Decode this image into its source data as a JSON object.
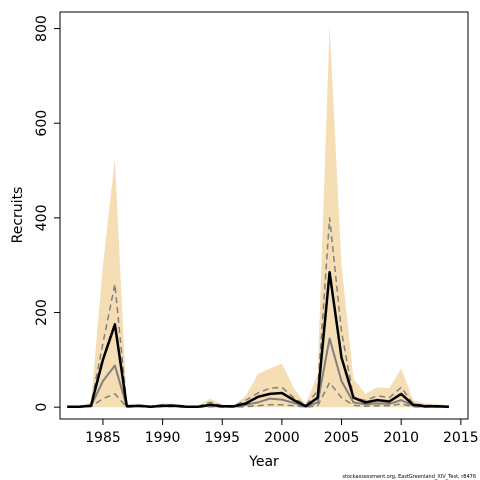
{
  "chart_data": {
    "type": "line",
    "xlabel": "Year",
    "ylabel": "Recruits",
    "xlim": [
      1981.4,
      2015.6
    ],
    "ylim": [
      -25,
      835
    ],
    "x_ticks": [
      1985,
      1990,
      1995,
      2000,
      2005,
      2010,
      2015
    ],
    "y_ticks": [
      0,
      200,
      400,
      600,
      800
    ],
    "footnote": "stockassessment.org, EastGreenland_XIV_Test, r8476",
    "colors": {
      "band": "#f5deb3",
      "median": "#000000",
      "dashed": "#808080",
      "grey": "#808080"
    },
    "x": [
      1982,
      1983,
      1984,
      1985,
      1986,
      1987,
      1988,
      1989,
      1990,
      1991,
      1992,
      1993,
      1994,
      1995,
      1996,
      1997,
      1998,
      1999,
      2000,
      2001,
      2002,
      2003,
      2004,
      2005,
      2006,
      2007,
      2008,
      2009,
      2010,
      2011,
      2012,
      2013,
      2014
    ],
    "series": [
      {
        "style": "band",
        "lower": [
          0,
          0,
          0,
          0,
          0,
          0,
          0,
          0,
          0,
          0,
          0,
          0,
          0,
          0,
          0,
          0,
          0,
          0,
          0,
          0,
          0,
          0,
          0,
          0,
          0,
          0,
          0,
          0,
          0,
          0,
          0,
          0,
          0
        ],
        "upper": [
          3,
          3,
          8,
          300,
          525,
          4,
          6,
          3,
          8,
          7,
          3,
          3,
          18,
          5,
          4,
          25,
          70,
          82,
          92,
          40,
          6,
          70,
          805,
          300,
          60,
          28,
          42,
          40,
          82,
          15,
          8,
          6,
          3
        ]
      },
      {
        "style": "dashed-upper",
        "values": [
          2,
          2,
          5,
          135,
          260,
          3,
          4,
          2,
          5,
          5,
          2,
          2,
          10,
          3,
          3,
          15,
          30,
          40,
          42,
          20,
          4,
          35,
          400,
          160,
          20,
          14,
          24,
          20,
          42,
          7,
          4,
          3,
          2
        ]
      },
      {
        "style": "median",
        "values": [
          1,
          1,
          3,
          100,
          175,
          2,
          3,
          1,
          3,
          3,
          1,
          1,
          5,
          2,
          2,
          8,
          22,
          28,
          30,
          15,
          2,
          20,
          285,
          105,
          20,
          10,
          15,
          12,
          28,
          5,
          2,
          2,
          1
        ]
      },
      {
        "style": "grey-solid",
        "values": [
          1,
          1,
          2,
          55,
          88,
          1,
          2,
          1,
          2,
          2,
          1,
          1,
          3,
          1,
          1,
          5,
          10,
          18,
          16,
          9,
          1,
          10,
          145,
          55,
          10,
          6,
          8,
          7,
          15,
          3,
          1,
          1,
          1
        ]
      },
      {
        "style": "dashed-lower",
        "values": [
          0,
          0,
          1,
          18,
          28,
          0,
          1,
          0,
          1,
          1,
          0,
          0,
          1,
          0,
          0,
          1,
          3,
          5,
          5,
          3,
          0,
          3,
          52,
          20,
          4,
          2,
          3,
          3,
          7,
          1,
          0,
          0,
          0
        ]
      }
    ]
  }
}
